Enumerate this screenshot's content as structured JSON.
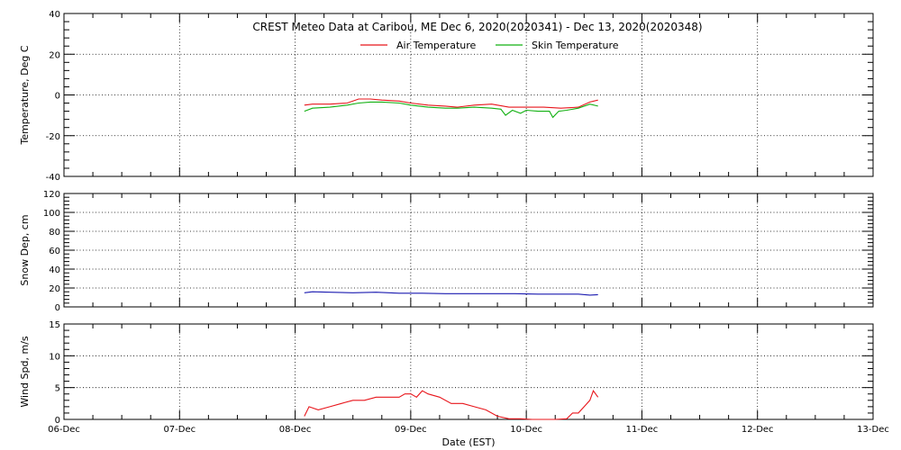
{
  "chart_data": {
    "type": "line",
    "title": "CREST Meteo Data at Caribou, ME   Dec  6, 2020(2020341) - Dec 13, 2020(2020348)",
    "xlabel": "Date (EST)",
    "x_tick_labels": [
      "06-Dec",
      "07-Dec",
      "08-Dec",
      "09-Dec",
      "10-Dec",
      "11-Dec",
      "12-Dec",
      "13-Dec"
    ],
    "x_range_days": [
      0,
      7
    ],
    "colors": {
      "air": "#e8151b",
      "skin": "#10b010",
      "snow": "#1a1ab0",
      "wind": "#e8151b"
    },
    "panels": [
      {
        "name": "temperature",
        "ylabel": "Temperature, Deg C",
        "ylim": [
          -40,
          40
        ],
        "y_ticks": [
          -40,
          -20,
          0,
          20,
          40
        ],
        "y_tick_labels": [
          "-40",
          "-20",
          "0",
          "20",
          "40"
        ],
        "legend_placement": "top-center",
        "series": [
          {
            "name": "Air Temperature",
            "color_key": "air",
            "x": [
              2.08,
              2.15,
              2.3,
              2.45,
              2.55,
              2.65,
              2.75,
              2.9,
              3.0,
              3.15,
              3.3,
              3.4,
              3.55,
              3.7,
              3.85,
              4.0,
              4.15,
              4.3,
              4.45,
              4.55,
              4.62
            ],
            "y": [
              -5,
              -4.5,
              -4.5,
              -4,
              -2,
              -2,
              -2.5,
              -3,
              -4,
              -5,
              -5.5,
              -6,
              -5,
              -4.5,
              -6,
              -6,
              -6,
              -6.5,
              -6,
              -3.5,
              -2.5
            ]
          },
          {
            "name": "Skin Temperature",
            "color_key": "skin",
            "x": [
              2.08,
              2.15,
              2.3,
              2.45,
              2.55,
              2.65,
              2.75,
              2.9,
              3.0,
              3.15,
              3.3,
              3.4,
              3.55,
              3.7,
              3.78,
              3.82,
              3.88,
              3.95,
              4.0,
              4.1,
              4.2,
              4.23,
              4.28,
              4.35,
              4.45,
              4.55,
              4.62
            ],
            "y": [
              -8,
              -6.5,
              -6,
              -5,
              -4,
              -3.5,
              -3.5,
              -4,
              -5,
              -6,
              -6.5,
              -6.5,
              -6,
              -6.5,
              -7,
              -10,
              -7.5,
              -9,
              -7.5,
              -8,
              -8,
              -11,
              -8,
              -7.5,
              -6.5,
              -4.5,
              -5.5
            ]
          }
        ]
      },
      {
        "name": "snow",
        "ylabel": "Snow Dep, cm",
        "ylim": [
          0,
          120
        ],
        "y_ticks": [
          0,
          20,
          40,
          60,
          80,
          100,
          120
        ],
        "y_tick_labels": [
          "0",
          "20",
          "40",
          "60",
          "80",
          "100",
          "120"
        ],
        "series": [
          {
            "name": "",
            "color_key": "snow",
            "x": [
              2.08,
              2.15,
              2.3,
              2.5,
              2.7,
              2.9,
              3.1,
              3.3,
              3.5,
              3.7,
              3.9,
              4.1,
              4.3,
              4.45,
              4.55,
              4.62
            ],
            "y": [
              15,
              16,
              15.5,
              15,
              15.5,
              14.5,
              14.5,
              14,
              14,
              14,
              14,
              13.5,
              13.5,
              13.5,
              12.5,
              13
            ]
          }
        ]
      },
      {
        "name": "wind",
        "ylabel": "Wind Spd, m/s",
        "ylim": [
          0,
          15
        ],
        "y_ticks": [
          0,
          5,
          10,
          15
        ],
        "y_tick_labels": [
          "0",
          "5",
          "10",
          "15"
        ],
        "series": [
          {
            "name": "",
            "color_key": "wind",
            "x": [
              2.08,
              2.12,
              2.2,
              2.3,
              2.4,
              2.5,
              2.6,
              2.7,
              2.8,
              2.9,
              2.95,
              3.0,
              3.05,
              3.1,
              3.15,
              3.25,
              3.35,
              3.45,
              3.55,
              3.65,
              3.75,
              3.85,
              3.95,
              4.05,
              4.15,
              4.25,
              4.35,
              4.4,
              4.45,
              4.5,
              4.55,
              4.58,
              4.62
            ],
            "y": [
              0.5,
              2,
              1.5,
              2,
              2.5,
              3,
              3,
              3.5,
              3.5,
              3.5,
              4,
              4,
              3.5,
              4.5,
              4,
              3.5,
              2.5,
              2.5,
              2,
              1.5,
              0.5,
              0.1,
              0.1,
              0,
              0,
              0,
              0.1,
              1,
              1,
              2,
              3,
              4.5,
              3.5
            ]
          }
        ]
      }
    ]
  }
}
